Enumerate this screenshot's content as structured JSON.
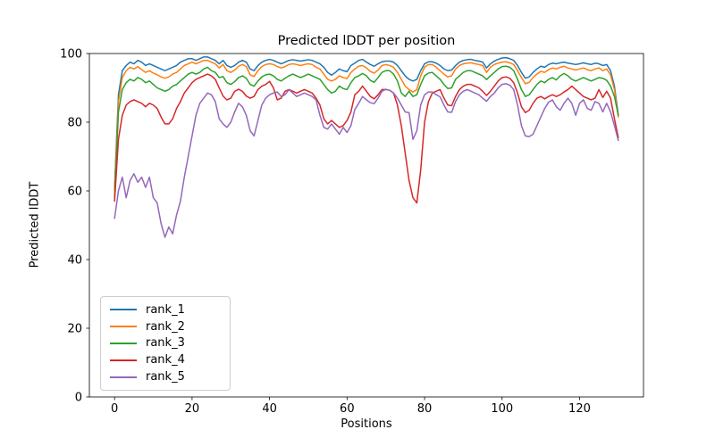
{
  "chart_data": {
    "type": "line",
    "title": "Predicted lDDT per position",
    "xlabel": "Positions",
    "ylabel": "Predicted lDDT",
    "xlim": [
      -6.5,
      136.5
    ],
    "ylim": [
      0,
      100
    ],
    "x_ticks": [
      0,
      20,
      40,
      60,
      80,
      100,
      120
    ],
    "y_ticks": [
      0,
      20,
      40,
      60,
      80,
      100
    ],
    "grid": false,
    "legend_position": "lower left",
    "x_start": 0,
    "x_step": 1,
    "series": [
      {
        "label": "rank_1",
        "color": "#1f77b4",
        "values": [
          61,
          88,
          95,
          96.5,
          97.5,
          97,
          98,
          97.5,
          96.5,
          97,
          96.5,
          96,
          95.5,
          95,
          95.5,
          96,
          96.5,
          97.5,
          98,
          98.5,
          98.5,
          98,
          98.5,
          99,
          99,
          98.5,
          98,
          97,
          98,
          96.5,
          96,
          96.5,
          97.5,
          98,
          97.5,
          95.5,
          95,
          96.5,
          97.5,
          98,
          98.3,
          98,
          97.5,
          97,
          97.5,
          98,
          98.2,
          98,
          97.8,
          98,
          98.2,
          98,
          97.5,
          97,
          96,
          94.5,
          93.7,
          94.5,
          95.5,
          95,
          94.7,
          96.5,
          97.2,
          98,
          98.3,
          97.5,
          96.8,
          96.3,
          97,
          97.6,
          97.8,
          97.8,
          97.5,
          96.5,
          95,
          93.5,
          92.5,
          92,
          92.5,
          95,
          97,
          97.6,
          97.6,
          97.2,
          96.5,
          95.5,
          95,
          95.2,
          96.5,
          97.5,
          98,
          98.2,
          98.3,
          98,
          97.8,
          97.5,
          95.8,
          97,
          97.8,
          98.3,
          98.7,
          98.8,
          98.5,
          98,
          96.5,
          94.5,
          92.8,
          93.2,
          94.5,
          95.5,
          96.3,
          96,
          96.8,
          97.2,
          97,
          97.3,
          97.5,
          97.2,
          97,
          96.8,
          97,
          97.3,
          97,
          96.8,
          97.2,
          97,
          96.5,
          96.8,
          95,
          90.5,
          82
        ]
      },
      {
        "label": "rank_2",
        "color": "#ff7f0e",
        "values": [
          60,
          86,
          93,
          95,
          96,
          95.5,
          96.2,
          95.3,
          94.5,
          95,
          94.3,
          93.8,
          93.2,
          92.8,
          93.2,
          94,
          94.5,
          95.5,
          96.5,
          97,
          97.5,
          97,
          97.5,
          98,
          98,
          97.5,
          97,
          95.8,
          96.8,
          95,
          94.5,
          95.2,
          96.3,
          96.8,
          96.2,
          93.8,
          93.3,
          95,
          96.2,
          96.8,
          97,
          96.8,
          96.2,
          95.8,
          96.2,
          96.8,
          97,
          96.8,
          96.5,
          96.8,
          97,
          96.8,
          96,
          95.5,
          94,
          92.5,
          92,
          92.5,
          93.5,
          93,
          92.7,
          94.5,
          95.5,
          96.3,
          96.5,
          95.8,
          94.8,
          94.3,
          95.2,
          96.5,
          96.8,
          96.5,
          96,
          94.5,
          92.5,
          90.5,
          89.5,
          88.8,
          89.5,
          93.5,
          96,
          96.8,
          96.8,
          96,
          95,
          94,
          93.2,
          93.5,
          95.5,
          96.5,
          97,
          97.2,
          97.3,
          97,
          96.8,
          96.5,
          94.5,
          96,
          96.8,
          97.2,
          97.5,
          97.6,
          97.3,
          96.8,
          95,
          93,
          91.2,
          91.6,
          93,
          94,
          94.8,
          94.5,
          95.3,
          95.8,
          95.5,
          96,
          96.3,
          95.8,
          95.5,
          95.2,
          95.5,
          95.8,
          95.3,
          95,
          95.5,
          95.8,
          95,
          95.5,
          93.8,
          89.5,
          81.5
        ]
      },
      {
        "label": "rank_3",
        "color": "#2ca02c",
        "values": [
          58,
          83,
          89.5,
          91.5,
          92.5,
          92,
          93,
          92.5,
          91.5,
          92,
          91,
          90,
          89.5,
          89,
          89.5,
          90.5,
          91,
          92,
          93,
          94,
          94.5,
          94,
          94.5,
          95.5,
          96,
          95,
          94.5,
          93,
          93.3,
          91.5,
          91,
          91.8,
          93,
          93.5,
          92.8,
          91,
          90.5,
          92,
          93.2,
          93.8,
          94,
          93.5,
          92.5,
          92,
          92.8,
          93.5,
          94,
          93.5,
          93,
          93.5,
          94,
          93.5,
          93,
          92.5,
          91,
          89.5,
          88.5,
          89,
          90.5,
          89.8,
          89.5,
          91.5,
          93,
          93.5,
          94.2,
          93.5,
          92.2,
          91.6,
          93,
          94.5,
          95,
          95,
          94,
          92,
          88.5,
          87.5,
          89,
          87.5,
          88,
          91,
          93.5,
          94.3,
          94.5,
          93.5,
          92.5,
          91,
          89.8,
          90,
          92.5,
          93.5,
          94.5,
          95,
          95,
          94.5,
          94,
          93.5,
          92.4,
          93.5,
          94.5,
          95.5,
          96.2,
          96.3,
          96,
          95,
          92.5,
          89.5,
          87.5,
          88,
          89.5,
          91,
          92,
          91.5,
          92.5,
          93,
          92.3,
          93.5,
          94.2,
          93.5,
          92.5,
          92,
          92.5,
          93,
          92.5,
          92,
          92.5,
          93,
          92.8,
          92.2,
          90.5,
          87.5,
          82
        ]
      },
      {
        "label": "rank_4",
        "color": "#d62728",
        "values": [
          57,
          75,
          82,
          85,
          86,
          86.5,
          86,
          85.5,
          84.5,
          85.5,
          85,
          84,
          81.5,
          79.5,
          79.5,
          81,
          84,
          86,
          88.5,
          90,
          91.5,
          92.5,
          93,
          93.5,
          94,
          93.5,
          92.5,
          90,
          87.6,
          86.5,
          87,
          89,
          89.6,
          89,
          87.6,
          87,
          87.5,
          89.5,
          90.5,
          91,
          91.9,
          90,
          86.5,
          87,
          89,
          89.5,
          89,
          88.5,
          89,
          89.5,
          89,
          88.5,
          87,
          85,
          81,
          79.5,
          80.5,
          79.5,
          78.5,
          79,
          80.5,
          83,
          88,
          89,
          90.5,
          89,
          87.5,
          86.8,
          88,
          89.5,
          89.5,
          89.3,
          88.5,
          85,
          79,
          71,
          63,
          58,
          56.5,
          66,
          80,
          86,
          88.5,
          89,
          89.5,
          87,
          85,
          84.8,
          87.5,
          89.5,
          90.5,
          91,
          91,
          90.5,
          90,
          89,
          87.8,
          89,
          90.5,
          92,
          93,
          93.2,
          92.8,
          91.5,
          88.5,
          84.5,
          82.8,
          83.5,
          85.5,
          87,
          87.5,
          86.8,
          87.5,
          88,
          87.5,
          88,
          88.8,
          89.5,
          90.5,
          89.5,
          88.5,
          87.5,
          87,
          86.5,
          87,
          89.5,
          87.2,
          89,
          87,
          81,
          75.5
        ]
      },
      {
        "label": "rank_5",
        "color": "#9467bd",
        "values": [
          52,
          60,
          64,
          58,
          63,
          65,
          62.5,
          64,
          61,
          64,
          58,
          56.5,
          50.5,
          46.5,
          49.5,
          47.5,
          53,
          57,
          64,
          70,
          76,
          82,
          85.5,
          87,
          88.5,
          88,
          86,
          81,
          79.5,
          78.5,
          80,
          83,
          85.5,
          84.5,
          82,
          77.5,
          76,
          80.5,
          85,
          87,
          88,
          88.5,
          88.8,
          87.5,
          88,
          89.5,
          88.5,
          87.5,
          88,
          88.5,
          88,
          87.5,
          86.5,
          82,
          78.5,
          78,
          79.5,
          78,
          76.5,
          78.5,
          77,
          79,
          83.7,
          85.5,
          87.5,
          86.5,
          85.7,
          85.4,
          87,
          89,
          89.6,
          89.3,
          88.5,
          87,
          85,
          83,
          82.8,
          75,
          77.5,
          85,
          88,
          88.8,
          88.8,
          88,
          87.4,
          85,
          83,
          82.9,
          86,
          88,
          89,
          89.5,
          89,
          88.5,
          88,
          87,
          86.1,
          87.5,
          88.5,
          90,
          91,
          91.2,
          90.8,
          89.5,
          85,
          79,
          76,
          75.8,
          76.5,
          79,
          81.5,
          84,
          85.8,
          86.5,
          84.5,
          83.5,
          85.5,
          87,
          85.5,
          82,
          85.5,
          86.5,
          84,
          83.5,
          86,
          85.5,
          83,
          85.5,
          83,
          79,
          74.7
        ]
      }
    ]
  }
}
